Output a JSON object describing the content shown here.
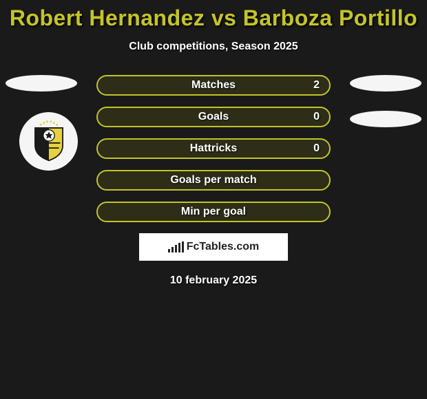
{
  "title": "Robert Hernandez vs Barboza Portillo",
  "title_color": "#c4c428",
  "subtitle": "Club competitions, Season 2025",
  "background_color": "#1a1a1a",
  "stat_border_color": "#c4c428",
  "stat_fill_color": "#2d2d18",
  "stats": [
    {
      "label": "Matches",
      "right_value": "2"
    },
    {
      "label": "Goals",
      "right_value": "0"
    },
    {
      "label": "Hattricks",
      "right_value": "0"
    },
    {
      "label": "Goals per match",
      "right_value": ""
    },
    {
      "label": "Min per goal",
      "right_value": ""
    }
  ],
  "watermark": "FcTables.com",
  "date": "10 february 2025",
  "badge": {
    "shield_colors": {
      "left": "#1a1a1a",
      "right": "#e8d23c",
      "outline": "#1a1a1a"
    },
    "stars_color": "#e8d23c"
  }
}
